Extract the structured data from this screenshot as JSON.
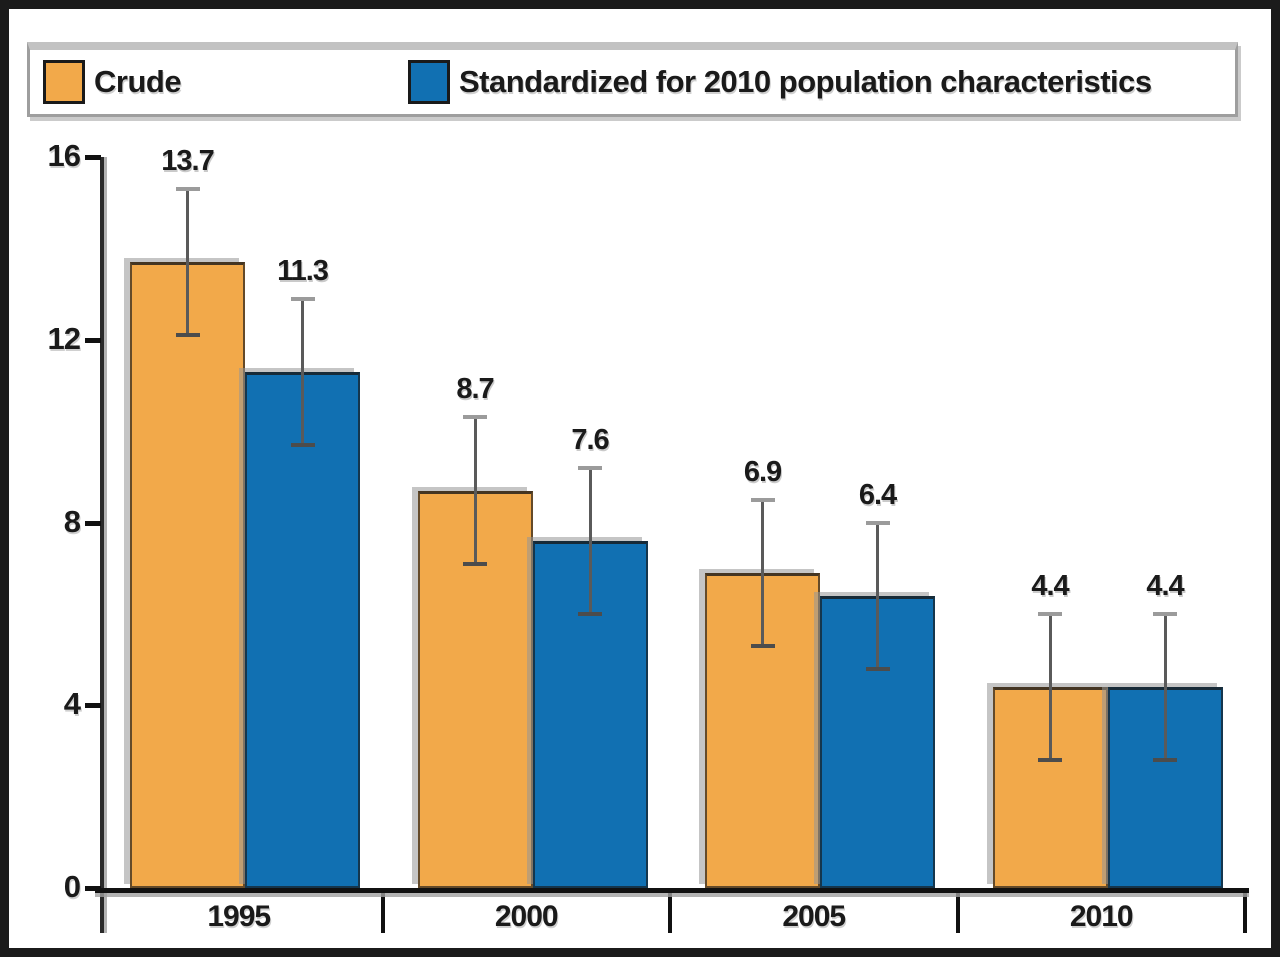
{
  "legend": {
    "items": [
      {
        "label": "Crude",
        "color": "#F2A94A"
      },
      {
        "label": "Standardized for 2010 population characteristics",
        "color": "#1170B2"
      }
    ]
  },
  "chart_data": {
    "type": "bar",
    "categories": [
      "1995",
      "2000",
      "2005",
      "2010"
    ],
    "series": [
      {
        "name": "Crude",
        "color": "#F2A94A",
        "values": [
          13.7,
          8.7,
          6.9,
          4.4
        ],
        "error_high": [
          15.3,
          10.3,
          8.5,
          6.0
        ],
        "error_low": [
          12.1,
          7.1,
          5.3,
          2.8
        ]
      },
      {
        "name": "Standardized for 2010 population characteristics",
        "color": "#1170B2",
        "values": [
          11.3,
          7.6,
          6.4,
          4.4
        ],
        "error_high": [
          12.9,
          9.2,
          8.0,
          6.0
        ],
        "error_low": [
          9.7,
          6.0,
          4.8,
          2.8
        ]
      }
    ],
    "title": "",
    "xlabel": "",
    "ylabel": "",
    "ylim": [
      0,
      16
    ],
    "yticks": [
      0,
      4,
      8,
      12,
      16
    ],
    "ytick_labels": [
      "0",
      "4",
      "8",
      "12",
      "16"
    ],
    "value_labels": true,
    "error_bars": true,
    "grid": false,
    "legend_position": "top"
  }
}
